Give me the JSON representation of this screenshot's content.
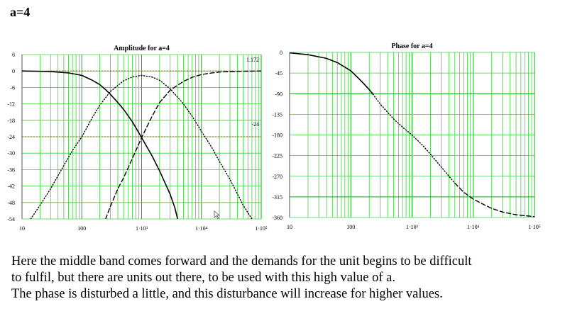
{
  "heading": "a=4",
  "colors": {
    "grid": "#3ecf3e",
    "grid_bold": "#1aa81a",
    "reference_line": "#cc2222",
    "curve": "#000000"
  },
  "chart_data": [
    {
      "type": "line",
      "title": "Amplitude for a=4",
      "xscale": "log",
      "xlim": [
        10,
        100000
      ],
      "ylim": [
        -54,
        6
      ],
      "x_tick_labels": [
        "10",
        "100",
        "1·10³",
        "1·10⁴",
        "1·10⁵"
      ],
      "y_ticks": [
        6,
        0,
        -6,
        -12,
        -18,
        -24,
        -30,
        -36,
        -42,
        -48,
        -54
      ],
      "grid": true,
      "annotations": [
        "1.172",
        "-24"
      ],
      "reference_lines": [
        0,
        -24
      ],
      "series": [
        {
          "style": "solid",
          "x": [
            10,
            30,
            60,
            100,
            150,
            200,
            250,
            300,
            400,
            500,
            700,
            1000,
            1500,
            2000,
            3000,
            3600,
            4000
          ],
          "y": [
            0,
            -0.2,
            -0.7,
            -1.6,
            -3.4,
            -5.0,
            -6.8,
            -8.5,
            -11.5,
            -14.0,
            -18.5,
            -24.3,
            -31.0,
            -36.5,
            -45.0,
            -50.0,
            -54.0
          ]
        },
        {
          "style": "dotted",
          "x": [
            14,
            20,
            30,
            50,
            70,
            100,
            150,
            200,
            300,
            500,
            700,
            1000,
            1500,
            2000,
            3000,
            5000,
            7000,
            10000,
            15000,
            20000,
            30000,
            50000,
            70000
          ],
          "y": [
            -54,
            -49,
            -43,
            -34.5,
            -29,
            -24,
            -17,
            -12.5,
            -7.5,
            -3.6,
            -2.2,
            -1.6,
            -2.2,
            -3.4,
            -6.5,
            -12,
            -16.5,
            -22,
            -28,
            -33,
            -39.5,
            -49,
            -54
          ]
        },
        {
          "style": "dashed",
          "x": [
            250,
            300,
            400,
            500,
            700,
            1000,
            1500,
            2000,
            3000,
            5000,
            7000,
            10000,
            15000,
            20000,
            30000,
            50000,
            100000
          ],
          "y": [
            -54,
            -49.5,
            -43,
            -39,
            -32,
            -24.3,
            -16.5,
            -11.5,
            -7,
            -3.8,
            -2.3,
            -1.3,
            -0.7,
            -0.4,
            -0.2,
            -0.1,
            0
          ]
        }
      ]
    },
    {
      "type": "line",
      "title": "Phase for a=4",
      "xscale": "log",
      "xlim": [
        10,
        100000
      ],
      "ylim": [
        -360,
        0
      ],
      "x_tick_labels": [
        "10",
        "100",
        "1·10³",
        "1·10⁴",
        "1·10⁵"
      ],
      "y_ticks": [
        0,
        -45,
        -90,
        -135,
        -180,
        -225,
        -270,
        -315,
        -360
      ],
      "grid": true,
      "series": [
        {
          "style": "solid",
          "x": [
            10,
            20,
            40,
            60,
            100,
            150,
            200,
            230
          ],
          "y": [
            -1,
            -5,
            -13,
            -22,
            -40,
            -63,
            -81,
            -91
          ]
        },
        {
          "style": "dotted",
          "x": [
            230,
            300,
            500,
            700,
            1000,
            1500,
            2000,
            3000,
            5000
          ],
          "y": [
            -91,
            -112,
            -145,
            -163,
            -180,
            -203,
            -222,
            -250,
            -285
          ]
        },
        {
          "style": "dashed",
          "x": [
            5000,
            7000,
            10000,
            15000,
            20000,
            30000,
            50000,
            70000,
            100000
          ],
          "y": [
            -285,
            -305,
            -320,
            -332,
            -340,
            -348,
            -354,
            -356,
            -358
          ]
        }
      ]
    }
  ],
  "caption": [
    "Here the middle band comes forward and the demands for the unit begins to be difficult",
    "to fulfil, but there are units out there, to be used with this high value of a.",
    "The phase is disturbed a little, and this disturbance will increase for higher values."
  ]
}
